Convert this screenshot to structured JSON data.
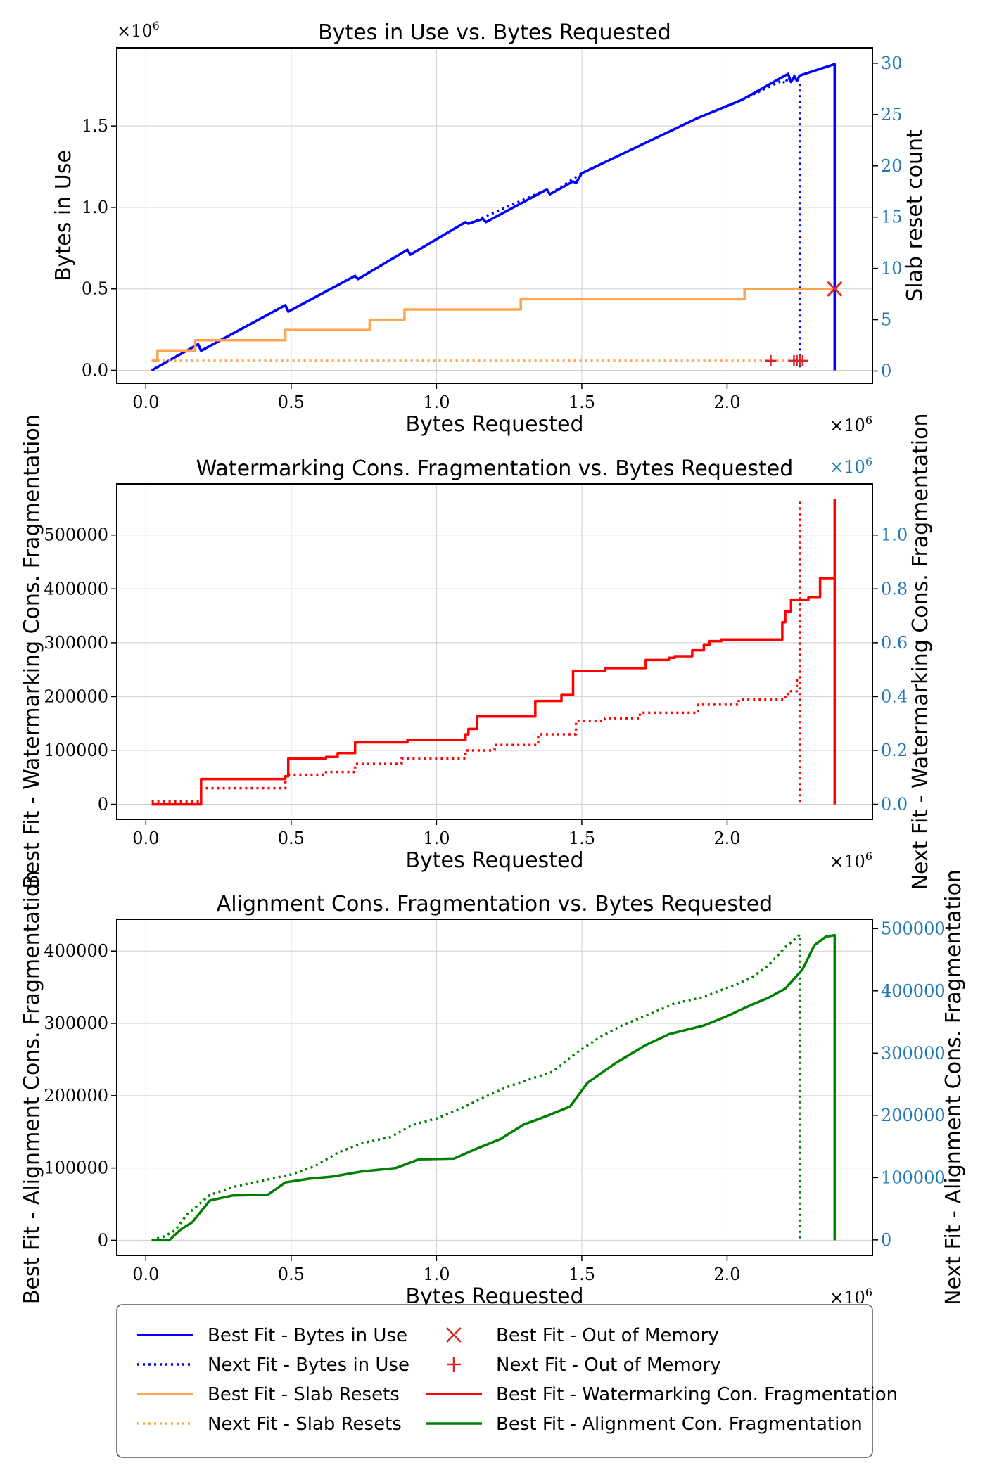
{
  "chart_data": [
    {
      "type": "line",
      "title": "Bytes in Use vs. Bytes Requested",
      "xlabel": "Bytes Requested",
      "ylabel": "Bytes in Use",
      "y2label": "Slab reset count",
      "xlim": [
        -0.1,
        2.5
      ],
      "ylim": [
        -0.08,
        1.98
      ],
      "y2lim": [
        -1.2,
        31.5
      ],
      "x_multiplier": "×10^6",
      "y_multiplier": "×10^6",
      "xticks": [
        "0.0",
        "0.5",
        "1.0",
        "1.5",
        "2.0"
      ],
      "yticks": [
        "0.0",
        "0.5",
        "1.0",
        "1.5"
      ],
      "y2ticks": [
        "0",
        "5",
        "10",
        "15",
        "20",
        "25",
        "30"
      ],
      "y2tick_color": "#1f77b4",
      "grid": true,
      "series": [
        {
          "name": "Best Fit - Bytes in Use",
          "axis": "left",
          "color": "#0000ff",
          "style": "solid",
          "x": [
            0.02,
            0.18,
            0.19,
            0.48,
            0.49,
            0.72,
            0.73,
            0.9,
            0.91,
            1.1,
            1.11,
            1.16,
            1.17,
            1.38,
            1.39,
            1.47,
            1.48,
            1.5,
            1.7,
            1.9,
            2.05,
            2.21,
            2.22,
            2.23,
            2.24,
            2.25,
            2.37,
            2.37,
            2.37
          ],
          "y": [
            0.0,
            0.16,
            0.12,
            0.4,
            0.36,
            0.58,
            0.56,
            0.74,
            0.71,
            0.91,
            0.9,
            0.93,
            0.91,
            1.11,
            1.08,
            1.16,
            1.15,
            1.21,
            1.38,
            1.55,
            1.66,
            1.82,
            1.77,
            1.8,
            1.78,
            1.81,
            1.88,
            1.5,
            0.0
          ]
        },
        {
          "name": "Next Fit - Bytes in Use",
          "axis": "left",
          "color": "#0000ff",
          "style": "dotted",
          "x": [
            0.02,
            0.18,
            0.19,
            0.48,
            0.49,
            0.72,
            0.73,
            0.9,
            0.91,
            1.1,
            1.11,
            1.38,
            1.39,
            1.5,
            1.7,
            1.9,
            2.05,
            2.19,
            2.2,
            2.21,
            2.22,
            2.23,
            2.24,
            2.25,
            2.25
          ],
          "y": [
            0.0,
            0.16,
            0.12,
            0.4,
            0.36,
            0.58,
            0.56,
            0.74,
            0.71,
            0.91,
            0.9,
            1.11,
            1.08,
            1.21,
            1.38,
            1.55,
            1.66,
            1.78,
            1.76,
            1.8,
            1.77,
            1.81,
            1.78,
            1.77,
            0.0
          ]
        },
        {
          "name": "Best Fit - Slab Resets",
          "axis": "right",
          "color": "#ffa550",
          "style": "solid",
          "x": [
            0.02,
            0.04,
            0.04,
            0.17,
            0.17,
            0.48,
            0.48,
            0.77,
            0.77,
            0.89,
            0.89,
            1.29,
            1.29,
            2.06,
            2.06,
            2.37
          ],
          "y": [
            1,
            1,
            2,
            2,
            3,
            3,
            4,
            4,
            5,
            5,
            6,
            6,
            7,
            7,
            8,
            8
          ]
        },
        {
          "name": "Next Fit - Slab Resets",
          "axis": "right",
          "color": "#ffa550",
          "style": "dotted",
          "x": [
            0.02,
            2.25
          ],
          "y": [
            1,
            1
          ]
        },
        {
          "name": "Best Fit - Out of Memory",
          "axis": "right",
          "color": "#d62728",
          "marker": "x",
          "x": [
            2.37
          ],
          "y": [
            8
          ]
        },
        {
          "name": "Next Fit - Out of Memory",
          "axis": "right",
          "color": "#d62728",
          "marker": "+",
          "x": [
            2.15,
            2.23,
            2.24,
            2.25,
            2.26
          ],
          "y": [
            1,
            1,
            1,
            1,
            1
          ]
        }
      ]
    },
    {
      "type": "line",
      "title": "Watermarking Cons. Fragmentation vs. Bytes Requested",
      "xlabel": "Bytes Requested",
      "ylabel": "Best Fit - Watermarking Cons. Fragmentation",
      "y2label": "Next Fit - Watermarking Cons. Fragmentation",
      "xlim": [
        -0.1,
        2.5
      ],
      "ylim": [
        -28000,
        595000
      ],
      "y2lim": [
        -0.056,
        1.19
      ],
      "x_multiplier": "×10^6",
      "y2_multiplier": "×10^6",
      "xticks": [
        "0.0",
        "0.5",
        "1.0",
        "1.5",
        "2.0"
      ],
      "yticks": [
        "0",
        "100000",
        "200000",
        "300000",
        "400000",
        "500000"
      ],
      "y2ticks": [
        "0.0",
        "0.2",
        "0.4",
        "0.6",
        "0.8",
        "1.0"
      ],
      "y2tick_color": "#1f77b4",
      "grid": true,
      "series": [
        {
          "name": "Best Fit - Watermarking Con. Fragmentation",
          "axis": "left",
          "color": "#ff0000",
          "style": "solid",
          "x": [
            0.02,
            0.19,
            0.19,
            0.48,
            0.48,
            0.49,
            0.49,
            0.62,
            0.62,
            0.66,
            0.66,
            0.72,
            0.72,
            0.9,
            0.9,
            1.1,
            1.1,
            1.11,
            1.11,
            1.14,
            1.14,
            1.34,
            1.34,
            1.43,
            1.43,
            1.47,
            1.47,
            1.58,
            1.58,
            1.72,
            1.72,
            1.8,
            1.8,
            1.82,
            1.82,
            1.88,
            1.88,
            1.92,
            1.92,
            1.94,
            1.94,
            1.98,
            1.98,
            2.19,
            2.19,
            2.2,
            2.2,
            2.22,
            2.22,
            2.28,
            2.28,
            2.32,
            2.32,
            2.37,
            2.37,
            2.37
          ],
          "y": [
            0,
            0,
            47000,
            47000,
            52000,
            52000,
            85000,
            85000,
            88000,
            88000,
            95000,
            95000,
            115000,
            115000,
            120000,
            120000,
            130000,
            130000,
            140000,
            140000,
            163000,
            163000,
            192000,
            192000,
            203000,
            203000,
            248000,
            248000,
            253000,
            253000,
            268000,
            268000,
            272000,
            272000,
            275000,
            275000,
            286000,
            286000,
            297000,
            297000,
            303000,
            303000,
            306000,
            306000,
            338000,
            338000,
            358000,
            358000,
            380000,
            380000,
            385000,
            385000,
            420000,
            420000,
            565000,
            0
          ]
        },
        {
          "name": "Next Fit - Watermarking Cons. Fragmentation",
          "axis": "right",
          "color": "#ff0000",
          "style": "dotted",
          "x": [
            0.02,
            0.19,
            0.19,
            0.48,
            0.48,
            0.62,
            0.62,
            0.72,
            0.72,
            0.88,
            0.88,
            1.1,
            1.1,
            1.2,
            1.2,
            1.35,
            1.35,
            1.48,
            1.48,
            1.58,
            1.58,
            1.7,
            1.7,
            1.9,
            1.9,
            2.04,
            2.04,
            2.2,
            2.2,
            2.22,
            2.22,
            2.24,
            2.24,
            2.25,
            2.25,
            2.25
          ],
          "y": [
            0.01,
            0.01,
            0.06,
            0.06,
            0.11,
            0.11,
            0.12,
            0.12,
            0.15,
            0.15,
            0.17,
            0.17,
            0.2,
            0.2,
            0.22,
            0.22,
            0.26,
            0.26,
            0.31,
            0.31,
            0.32,
            0.32,
            0.34,
            0.34,
            0.37,
            0.37,
            0.39,
            0.39,
            0.41,
            0.41,
            0.42,
            0.42,
            0.46,
            0.46,
            1.13,
            0.0
          ]
        }
      ]
    },
    {
      "type": "line",
      "title": "Alignment Cons. Fragmentation vs. Bytes Requested",
      "xlabel": "Bytes Requested",
      "ylabel": "Best Fit - Alignment Cons. Fragmentation",
      "y2label": "Next Fit - Alignment Cons. Fragmentation",
      "xlim": [
        -0.1,
        2.5
      ],
      "ylim": [
        -21000,
        444000
      ],
      "y2lim": [
        -25000,
        515000
      ],
      "x_multiplier": "×10^6",
      "xticks": [
        "0.0",
        "0.5",
        "1.0",
        "1.5",
        "2.0"
      ],
      "yticks": [
        "0",
        "100000",
        "200000",
        "300000",
        "400000"
      ],
      "y2ticks": [
        "0",
        "100000",
        "200000",
        "300000",
        "400000",
        "500000"
      ],
      "y2tick_color": "#1f77b4",
      "grid": true,
      "series": [
        {
          "name": "Best Fit - Alignment Con. Fragmentation",
          "axis": "left",
          "color": "#008000",
          "style": "solid",
          "x": [
            0.02,
            0.08,
            0.12,
            0.16,
            0.22,
            0.3,
            0.42,
            0.48,
            0.56,
            0.64,
            0.74,
            0.86,
            0.94,
            1.06,
            1.14,
            1.22,
            1.3,
            1.38,
            1.46,
            1.52,
            1.62,
            1.72,
            1.8,
            1.92,
            2.0,
            2.08,
            2.14,
            2.2,
            2.26,
            2.3,
            2.34,
            2.37,
            2.37
          ],
          "y": [
            0,
            0,
            15000,
            25000,
            55000,
            62000,
            63000,
            80000,
            85000,
            88000,
            95000,
            100000,
            112000,
            113000,
            127000,
            140000,
            160000,
            172000,
            185000,
            218000,
            246000,
            270000,
            285000,
            297000,
            310000,
            325000,
            335000,
            348000,
            375000,
            408000,
            420000,
            422000,
            0
          ]
        },
        {
          "name": "Next Fit - Alignment Cons. Fragmentation",
          "axis": "right",
          "color": "#008000",
          "style": "dotted",
          "x": [
            0.02,
            0.06,
            0.1,
            0.14,
            0.22,
            0.3,
            0.4,
            0.5,
            0.58,
            0.66,
            0.74,
            0.84,
            0.92,
            1.0,
            1.08,
            1.16,
            1.24,
            1.32,
            1.4,
            1.48,
            1.56,
            1.64,
            1.72,
            1.82,
            1.92,
            2.0,
            2.08,
            2.14,
            2.2,
            2.25,
            2.25
          ],
          "y": [
            0,
            5000,
            15000,
            40000,
            72000,
            85000,
            95000,
            105000,
            118000,
            140000,
            155000,
            165000,
            185000,
            195000,
            210000,
            228000,
            245000,
            258000,
            270000,
            300000,
            325000,
            345000,
            360000,
            380000,
            390000,
            405000,
            420000,
            440000,
            470000,
            490000,
            0
          ]
        }
      ]
    }
  ],
  "legend": {
    "columns": [
      [
        {
          "label": "Best Fit - Bytes in Use",
          "color": "#0000ff",
          "style": "solid"
        },
        {
          "label": "Next Fit - Bytes in Use",
          "color": "#0000ff",
          "style": "dotted"
        },
        {
          "label": "Best Fit - Slab Resets",
          "color": "#ffa550",
          "style": "solid"
        },
        {
          "label": "Next Fit - Slab Resets",
          "color": "#ffa550",
          "style": "dotted"
        }
      ],
      [
        {
          "label": "Best Fit - Out of Memory",
          "color": "#d62728",
          "marker": "x"
        },
        {
          "label": "Next Fit - Out of Memory",
          "color": "#d62728",
          "marker": "+"
        },
        {
          "label": "Best Fit - Watermarking Con. Fragmentation",
          "color": "#ff0000",
          "style": "solid"
        },
        {
          "label": "Best Fit - Alignment Con. Fragmentation",
          "color": "#008000",
          "style": "solid"
        }
      ]
    ]
  }
}
